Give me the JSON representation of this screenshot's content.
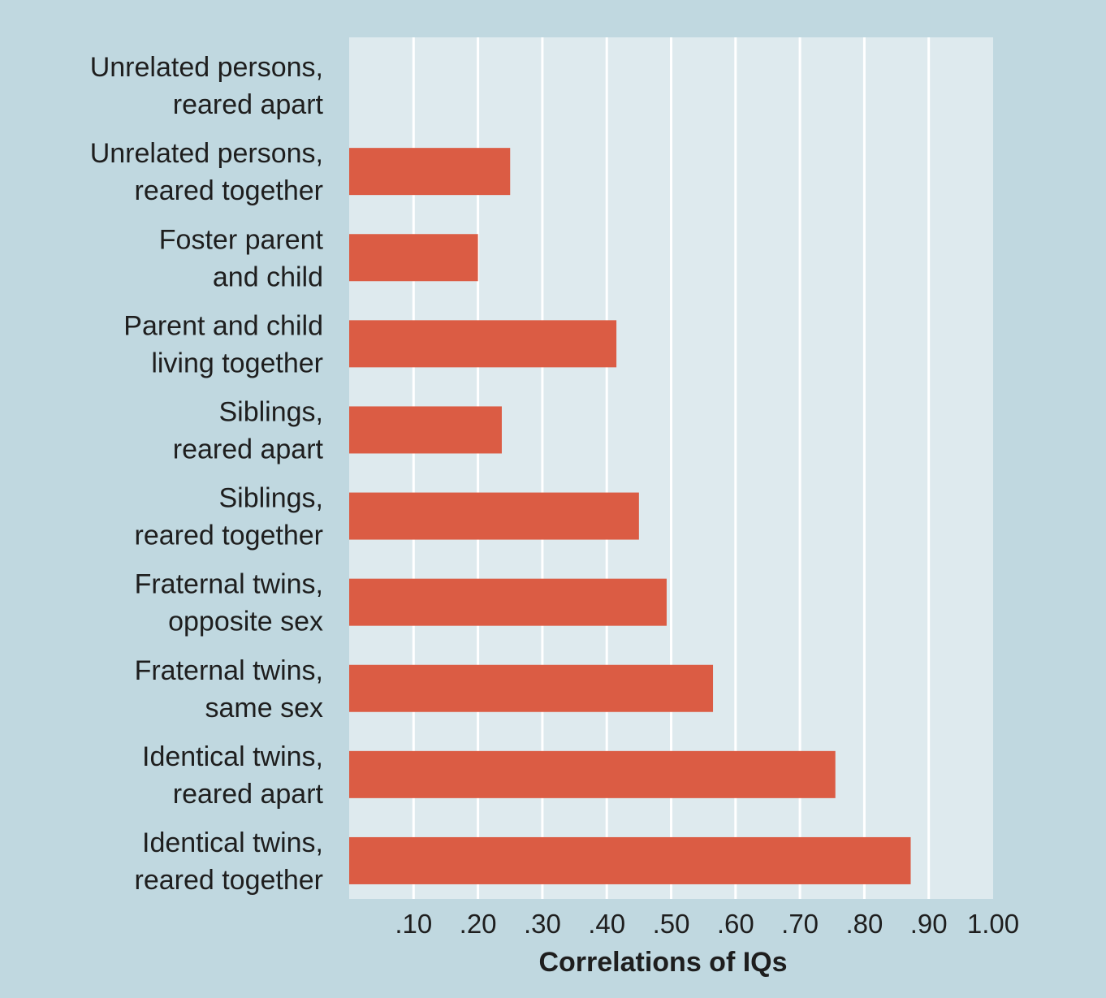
{
  "chart_data": {
    "type": "bar",
    "orientation": "horizontal",
    "categories": [
      [
        "Unrelated persons,",
        "reared apart"
      ],
      [
        "Unrelated persons,",
        "reared together"
      ],
      [
        "Foster parent",
        "and child"
      ],
      [
        "Parent and child",
        "living together"
      ],
      [
        "Siblings,",
        "reared apart"
      ],
      [
        "Siblings,",
        "reared together"
      ],
      [
        "Fraternal twins,",
        "opposite sex"
      ],
      [
        "Fraternal twins,",
        "same sex"
      ],
      [
        "Identical twins,",
        "reared apart"
      ],
      [
        "Identical twins,",
        "reared together"
      ]
    ],
    "values": [
      0.0,
      0.25,
      0.2,
      0.415,
      0.237,
      0.45,
      0.493,
      0.565,
      0.755,
      0.872
    ],
    "xlabel": "Correlations of IQs",
    "xlim": [
      0,
      1.0
    ],
    "ticks": [
      0.1,
      0.2,
      0.3,
      0.4,
      0.5,
      0.6,
      0.7,
      0.8,
      0.9,
      1.0
    ],
    "tick_labels": [
      ".10",
      ".20",
      ".30",
      ".40",
      ".50",
      ".60",
      ".70",
      ".80",
      ".90",
      "1.00"
    ],
    "grid": true,
    "colors": {
      "background": "#c0d8e0",
      "plot_area": "#deeaee",
      "bar": "#db5c44",
      "gridline": "#ffffff",
      "text": "#1e1e1e"
    }
  }
}
